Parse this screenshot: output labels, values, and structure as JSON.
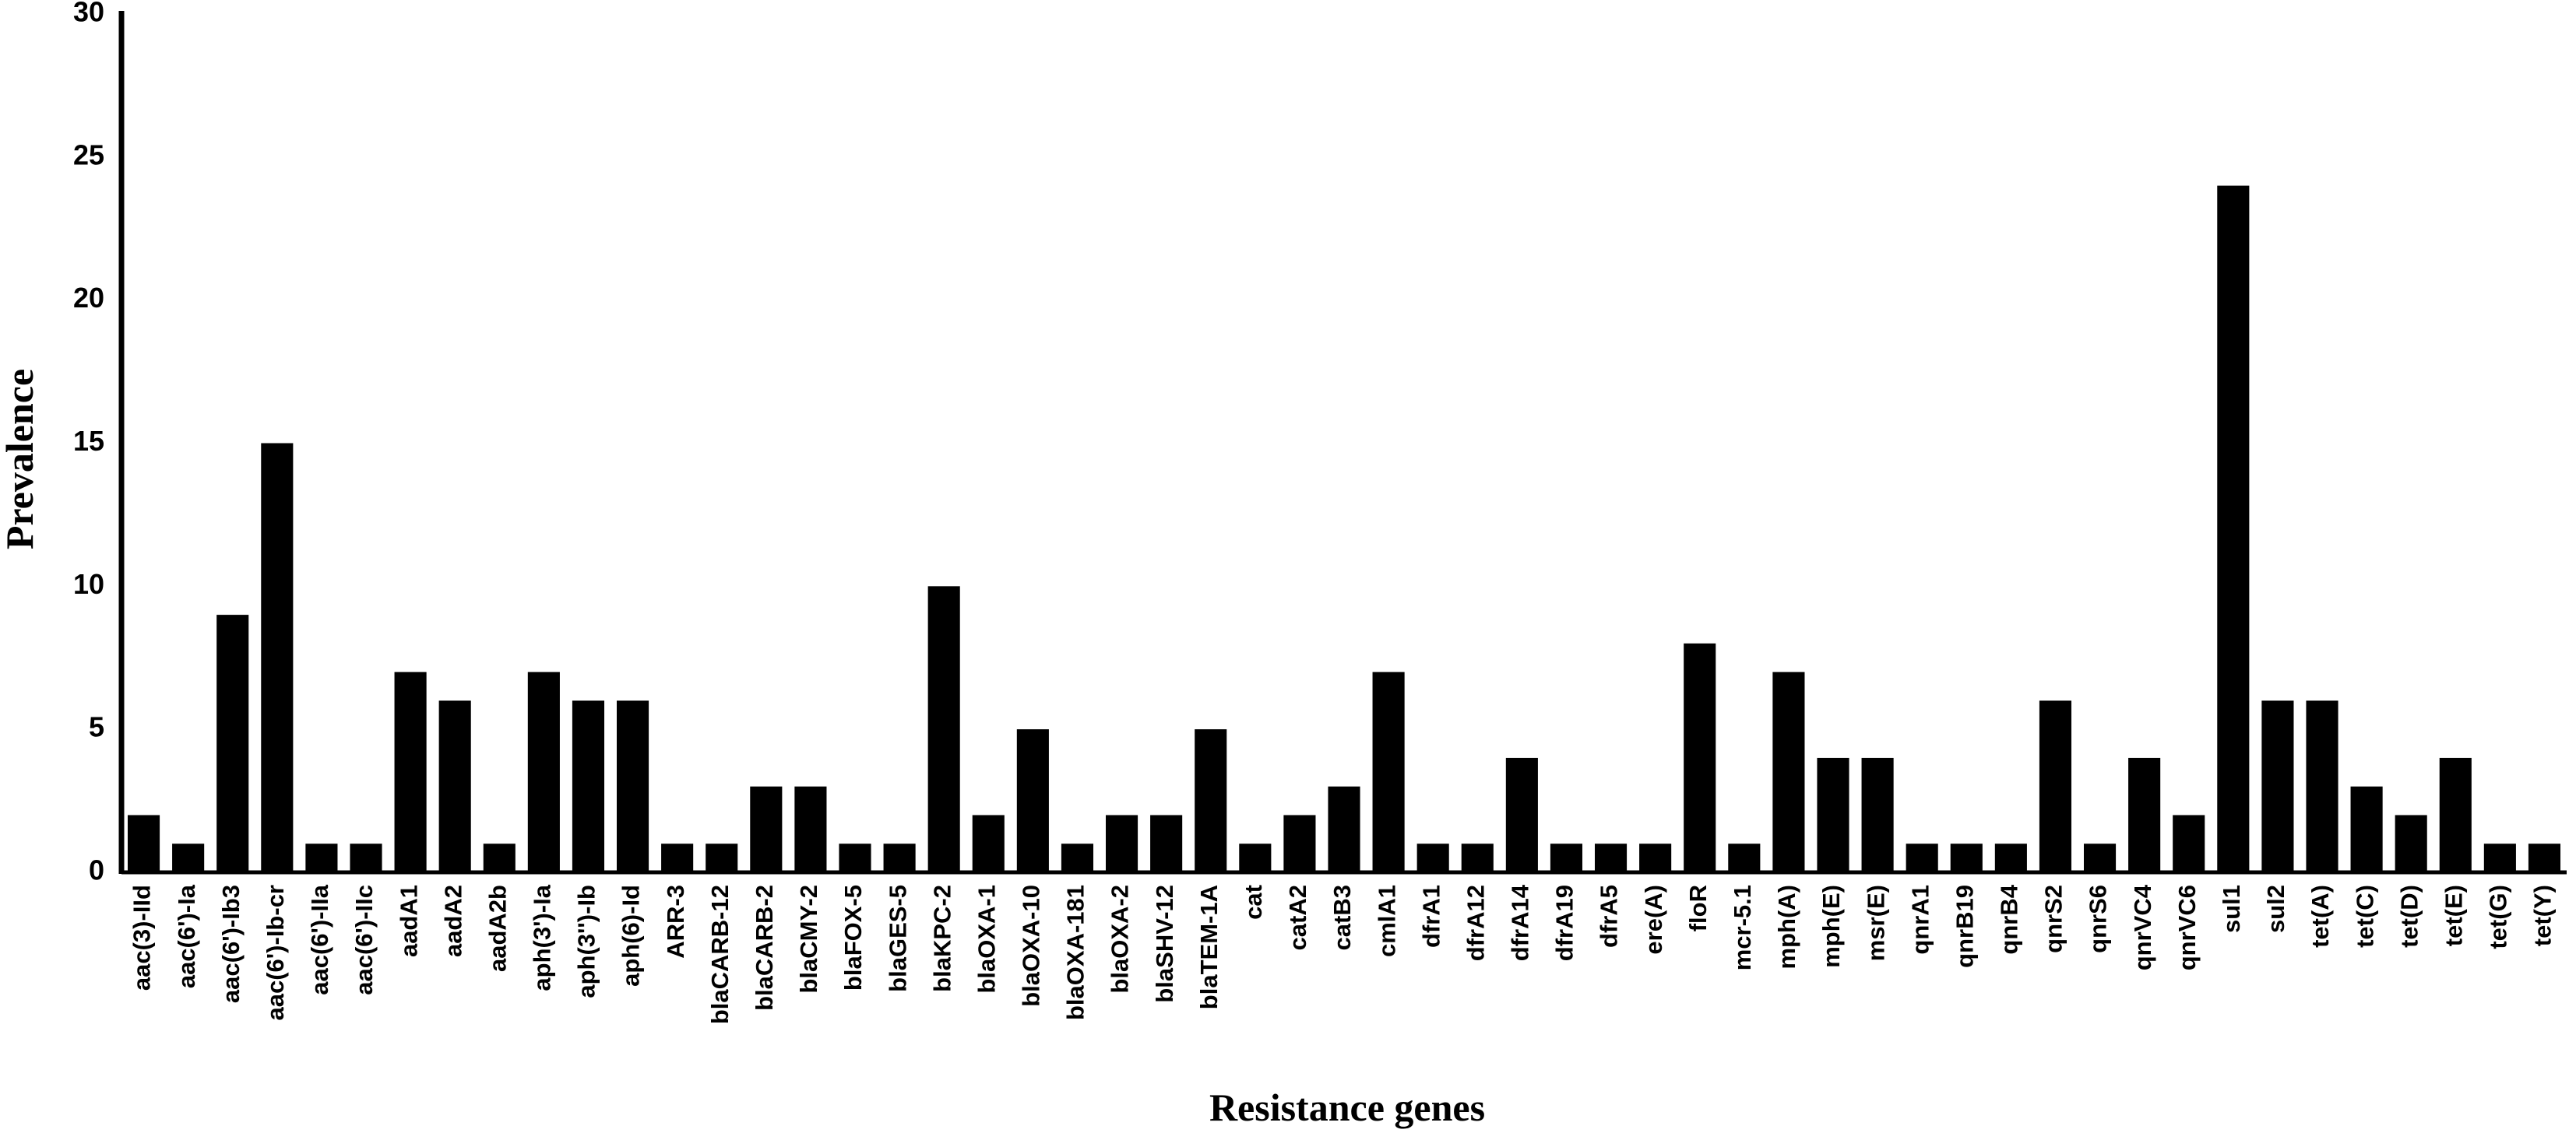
{
  "chart_data": {
    "type": "bar",
    "title": "",
    "xlabel": "Resistance genes",
    "ylabel": "Prevalence",
    "ylim": [
      0,
      30
    ],
    "yticks": [
      0,
      5,
      10,
      15,
      20,
      25,
      30
    ],
    "grid": false,
    "legend": "none",
    "bar_color": "#000000",
    "categories": [
      "aac(3)-IId",
      "aac(6')-Ia",
      "aac(6')-Ib3",
      "aac(6')-Ib-cr",
      "aac(6')-IIa",
      "aac(6')-IIc",
      "aadA1",
      "aadA2",
      "aadA2b",
      "aph(3')-Ia",
      "aph(3'')-Ib",
      "aph(6)-Id",
      "ARR-3",
      "blaCARB-12",
      "blaCARB-2",
      "blaCMY-2",
      "blaFOX-5",
      "blaGES-5",
      "blaKPC-2",
      "blaOXA-1",
      "blaOXA-10",
      "blaOXA-181",
      "blaOXA-2",
      "blaSHV-12",
      "blaTEM-1A",
      "cat",
      "catA2",
      "catB3",
      "cmlA1",
      "dfrA1",
      "dfrA12",
      "dfrA14",
      "dfrA19",
      "dfrA5",
      "ere(A)",
      "floR",
      "mcr-5.1",
      "mph(A)",
      "mph(E)",
      "msr(E)",
      "qnrA1",
      "qnrB19",
      "qnrB4",
      "qnrS2",
      "qnrS6",
      "qnrVC4",
      "qnrVC6",
      "sul1",
      "sul2",
      "tet(A)",
      "tet(C)",
      "tet(D)",
      "tet(E)",
      "tet(G)",
      "tet(Y)"
    ],
    "values": [
      2,
      1,
      9,
      15,
      1,
      1,
      7,
      6,
      1,
      7,
      6,
      6,
      1,
      1,
      3,
      3,
      1,
      1,
      10,
      2,
      5,
      1,
      2,
      2,
      5,
      1,
      2,
      3,
      7,
      1,
      1,
      4,
      1,
      1,
      1,
      8,
      1,
      7,
      4,
      4,
      1,
      1,
      1,
      6,
      1,
      4,
      2,
      24,
      6,
      6,
      3,
      2,
      4,
      1,
      1
    ]
  }
}
